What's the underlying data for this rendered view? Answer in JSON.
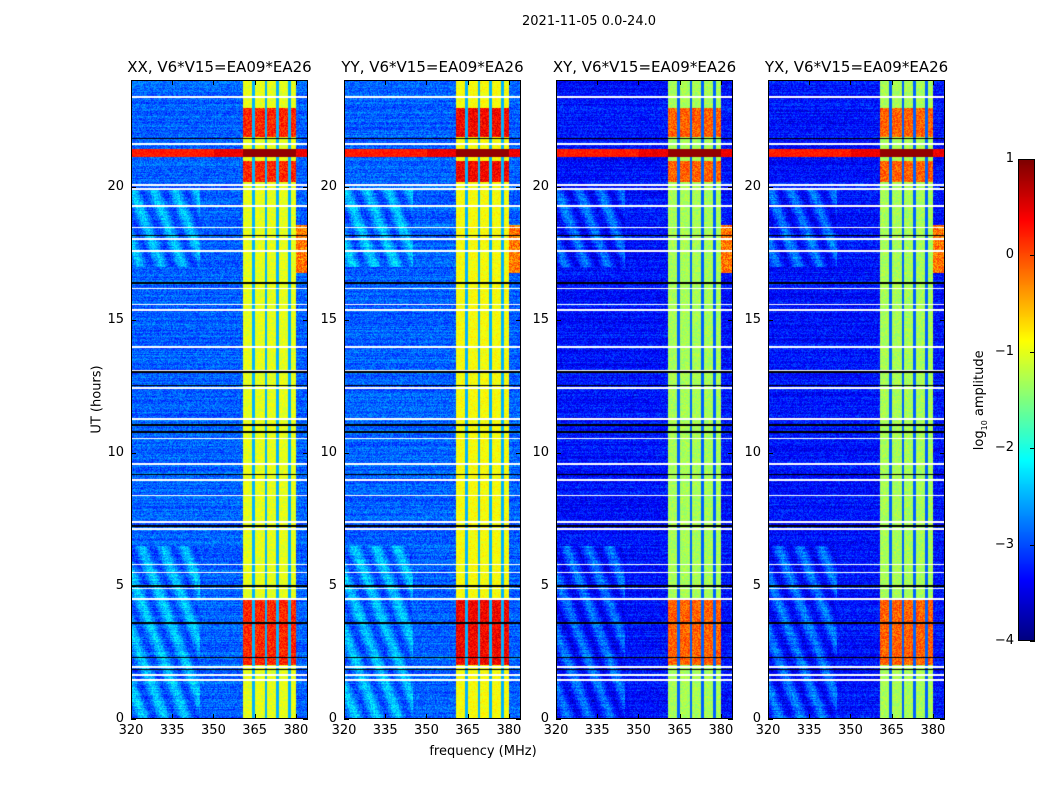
{
  "figure_title": "2021-11-05 0.0-24.0",
  "chart_data": {
    "type": "heatmap",
    "title": "2021-11-05 0.0-24.0",
    "xlabel": "frequency (MHz)",
    "ylabel": "UT (hours)",
    "xlim": [
      320,
      384.4
    ],
    "ylim": [
      0,
      24
    ],
    "xticks": [
      "320",
      "335",
      "350",
      "365",
      "380"
    ],
    "yticks": [
      "0",
      "5",
      "10",
      "15",
      "20"
    ],
    "xtick_values": [
      320,
      335,
      350,
      365,
      380
    ],
    "ytick_values": [
      0,
      5,
      10,
      15,
      20
    ],
    "colorbar": {
      "label_main": "log",
      "label_sub": "10",
      "label_rest": " amplitude",
      "range": [
        -4,
        1
      ],
      "ticks": [
        "1",
        "0",
        "−1",
        "−2",
        "−3",
        "−4"
      ],
      "tick_values": [
        1,
        0,
        -1,
        -2,
        -3,
        -4
      ],
      "colormap": "jet"
    },
    "panels": [
      {
        "title": "XX, V6*V15=EA09*EA26",
        "background_level": -2.9,
        "band_level": -1.0,
        "band_burst_level": 0.3
      },
      {
        "title": "YY, V6*V15=EA09*EA26",
        "background_level": -2.9,
        "band_level": -0.9,
        "band_burst_level": 0.5
      },
      {
        "title": "XY, V6*V15=EA09*EA26",
        "background_level": -3.3,
        "band_level": -1.3,
        "band_burst_level": 0.0
      },
      {
        "title": "YX, V6*V15=EA09*EA26",
        "background_level": -3.3,
        "band_level": -1.3,
        "band_burst_level": 0.0
      }
    ],
    "features": {
      "band_mhz": [
        360.7,
        380.0
      ],
      "band_gaps_mhz": [
        364.6,
        369.1,
        373.4,
        377.8
      ],
      "strong_rfi_hours": [
        21.15,
        21.45
      ],
      "burst_hours": [
        [
          2.0,
          4.5
        ],
        [
          21.9,
          23.0
        ],
        [
          20.2,
          21.0
        ]
      ],
      "flagged_white_hours": [
        23.4,
        21.65,
        20.1,
        19.95,
        19.3,
        18.5,
        18.05,
        17.6,
        16.2,
        15.6,
        15.4,
        14.0,
        13.1,
        12.45,
        11.3,
        10.55,
        9.6,
        9.0,
        8.4,
        7.4,
        7.15,
        5.8,
        5.5,
        4.9,
        4.5,
        1.95,
        1.65,
        1.45
      ],
      "flagged_black_hours": [
        21.85,
        18.2,
        16.4,
        13.05,
        12.55,
        11.05,
        10.8,
        9.2,
        7.25,
        5.0,
        3.6,
        2.3,
        1.85
      ]
    }
  }
}
